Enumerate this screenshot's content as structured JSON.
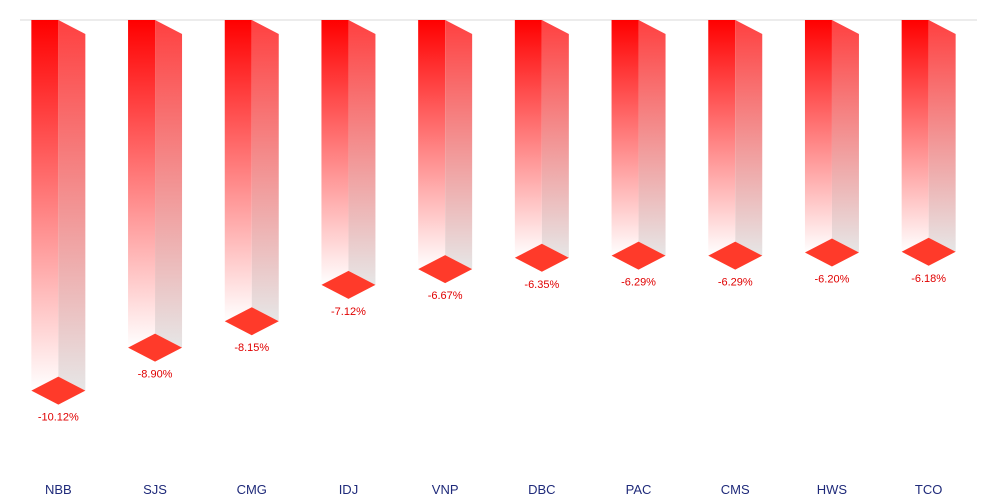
{
  "chart_data": {
    "type": "bar",
    "orientation": "vertical-negative",
    "style": "3d-gradient",
    "categories": [
      "NBB",
      "SJS",
      "CMG",
      "IDJ",
      "VNP",
      "DBC",
      "PAC",
      "CMS",
      "HWS",
      "TCO"
    ],
    "values": [
      -10.12,
      -8.9,
      -8.15,
      -7.12,
      -6.67,
      -6.35,
      -6.29,
      -6.29,
      -6.2,
      -6.18
    ],
    "value_labels": [
      "-10.12%",
      "-8.90%",
      "-8.15%",
      "-7.12%",
      "-6.67%",
      "-6.35%",
      "-6.29%",
      "-6.29%",
      "-6.20%",
      "-6.18%"
    ],
    "title": "",
    "xlabel": "",
    "ylabel": "",
    "ylim": [
      -11.35,
      0
    ],
    "grid": false,
    "legend": "none",
    "colors": {
      "bar_front_top": "#ff0000",
      "bar_front_bottom": "#ffffff",
      "bar_side_top": "#ff4040",
      "bar_side_bottom": "#e6e6e6",
      "bar_cap": "#ff3a2a",
      "value_label": "#e00000",
      "category_label": "#1f2a7a",
      "baseline": "#d9d9d9"
    }
  }
}
